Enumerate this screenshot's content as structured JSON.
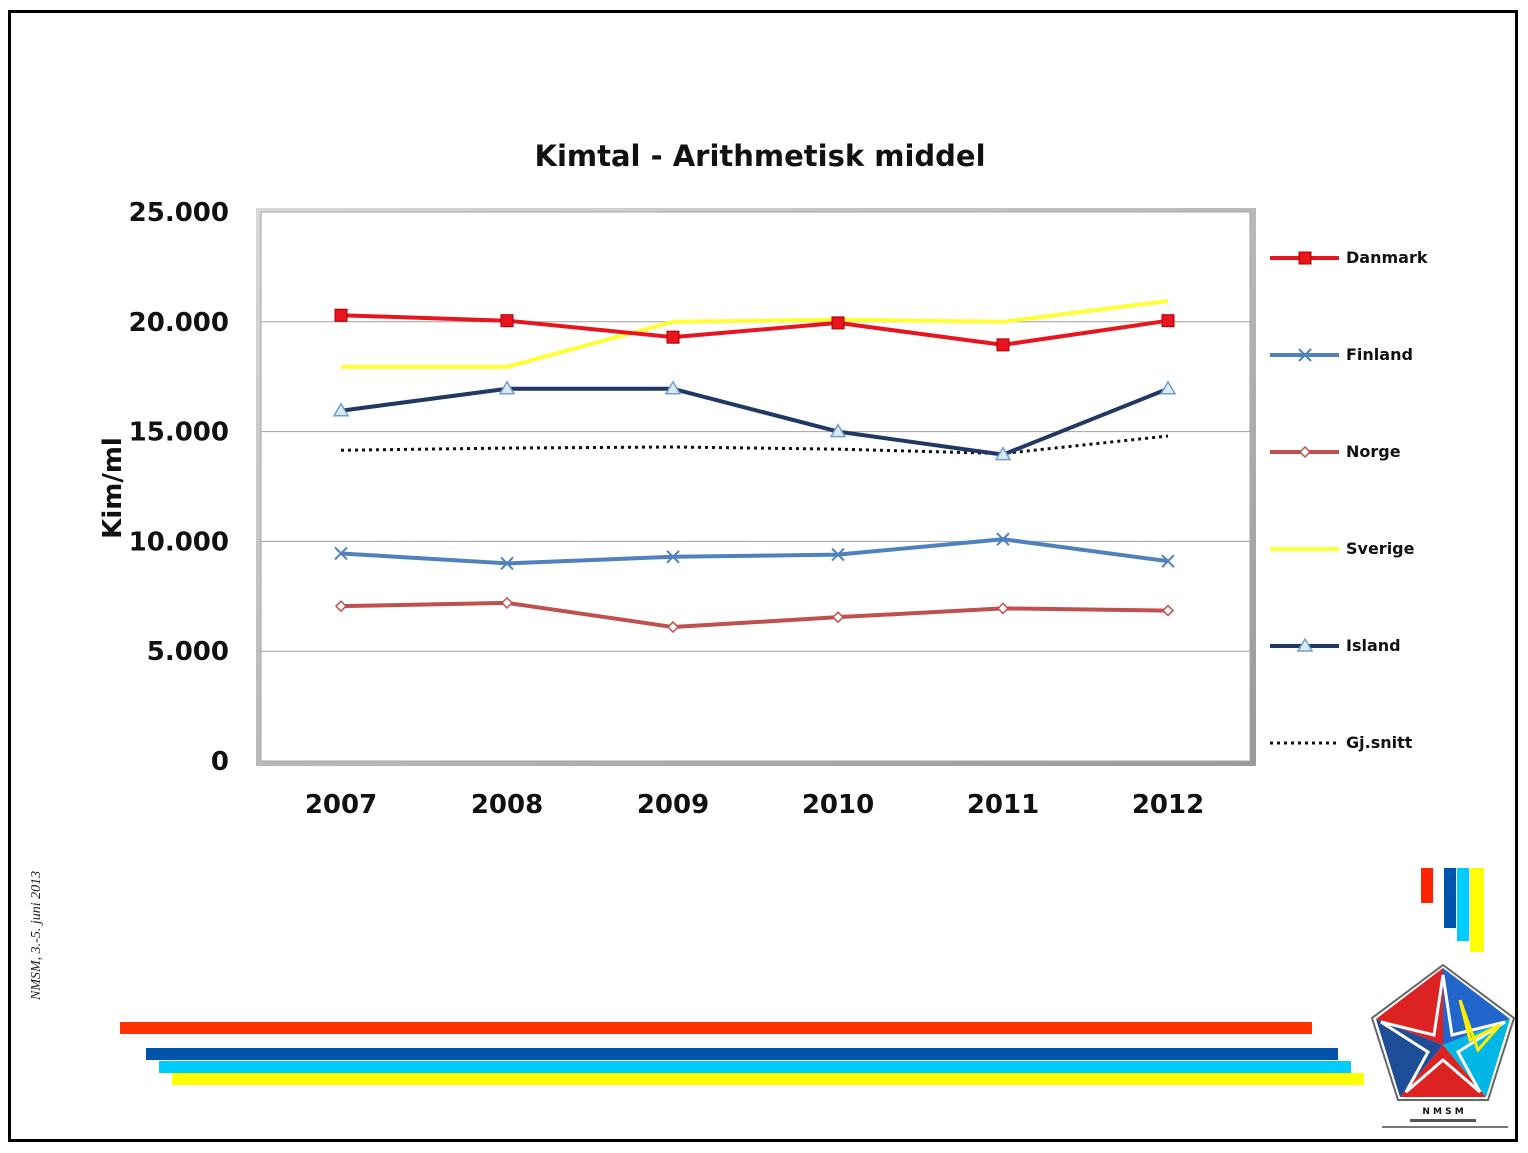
{
  "chart_data": {
    "type": "line",
    "title": "Kimtal - Arithmetisk middel",
    "xlabel": "",
    "ylabel": "Kim/ml",
    "categories": [
      "2007",
      "2008",
      "2009",
      "2010",
      "2011",
      "2012"
    ],
    "ylim": [
      0,
      25000
    ],
    "yticks": [
      "0",
      "5.000",
      "10.000",
      "15.000",
      "20.000",
      "25.000"
    ],
    "ytick_values": [
      0,
      5000,
      10000,
      15000,
      20000,
      25000
    ],
    "grid": true,
    "legend_position": "right",
    "series": [
      {
        "name": "Danmark",
        "values": [
          20300,
          20050,
          19300,
          19950,
          18950,
          20050
        ],
        "color": "#e8141e",
        "marker": "square",
        "dash": "solid"
      },
      {
        "name": "Finland",
        "values": [
          9450,
          9000,
          9300,
          9400,
          10100,
          9100
        ],
        "color": "#4f81bd",
        "marker": "x",
        "dash": "solid"
      },
      {
        "name": "Norge",
        "values": [
          7050,
          7200,
          6100,
          6550,
          6950,
          6850
        ],
        "color": "#c0504d",
        "marker": "diamond",
        "dash": "solid"
      },
      {
        "name": "Sverige",
        "values": [
          17950,
          17950,
          20000,
          20100,
          20000,
          20950
        ],
        "color": "#ffff33",
        "marker": "none",
        "dash": "solid"
      },
      {
        "name": "Island",
        "values": [
          15950,
          16950,
          16950,
          15000,
          13950,
          16950
        ],
        "color": "#1f3864",
        "marker": "triangle",
        "dash": "solid"
      },
      {
        "name": "Gj.snitt",
        "values": [
          14150,
          14250,
          14300,
          14200,
          14000,
          14800
        ],
        "color": "#111111",
        "marker": "none",
        "dash": "dotted"
      }
    ]
  },
  "footer": {
    "event_text": "NMSM, 3.-5. juni 2013"
  },
  "decor": {
    "stripe_colors": [
      "#ff3300",
      "#0055aa",
      "#00ccff",
      "#ffff00"
    ],
    "logo_label": "N M S M"
  }
}
